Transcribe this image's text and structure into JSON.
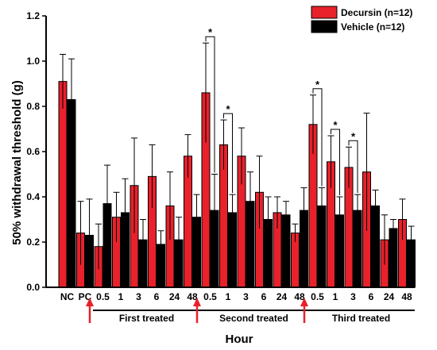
{
  "chart_data": {
    "type": "bar",
    "xlabel": "Hour",
    "ylabel": "50% withdrawal threshold (g)",
    "ylim": [
      0,
      1.2
    ],
    "yticks": [
      "0.0",
      "0.2",
      "0.4",
      "0.6",
      "0.8",
      "1.0",
      "1.2"
    ],
    "categories": [
      "NC",
      "PC",
      "0.5",
      "1",
      "3",
      "6",
      "24",
      "48",
      "0.5",
      "1",
      "3",
      "6",
      "24",
      "48",
      "0.5",
      "1",
      "3",
      "6",
      "24",
      "48"
    ],
    "series": [
      {
        "name": "Decursin (n=12)",
        "color": "#e8212b",
        "values": [
          0.91,
          0.24,
          0.18,
          0.31,
          0.45,
          0.49,
          0.36,
          0.58,
          0.86,
          0.63,
          0.58,
          0.42,
          0.33,
          0.24,
          0.72,
          0.555,
          0.53,
          0.51,
          0.21,
          0.3
        ],
        "errors": [
          0.12,
          0.14,
          0.1,
          0.11,
          0.21,
          0.14,
          0.15,
          0.095,
          0.22,
          0.11,
          0.125,
          0.16,
          0.07,
          0.04,
          0.13,
          0.115,
          0.09,
          0.26,
          0.11,
          0.09
        ]
      },
      {
        "name": "Vehicle (n=12)",
        "color": "#000000",
        "values": [
          0.83,
          0.23,
          0.37,
          0.33,
          0.21,
          0.19,
          0.21,
          0.31,
          0.34,
          0.33,
          0.38,
          0.3,
          0.32,
          0.34,
          0.36,
          0.32,
          0.34,
          0.36,
          0.26,
          0.21
        ],
        "errors": [
          0.18,
          0.16,
          0.17,
          0.15,
          0.09,
          0.06,
          0.1,
          0.1,
          0.16,
          0.08,
          0.13,
          0.1,
          0.06,
          0.1,
          0.08,
          0.08,
          0.07,
          0.07,
          0.04,
          0.06
        ]
      }
    ],
    "significance": [
      {
        "index": 8,
        "label": "*"
      },
      {
        "index": 9,
        "label": "*"
      },
      {
        "index": 14,
        "label": "*"
      },
      {
        "index": 15,
        "label": "*"
      },
      {
        "index": 16,
        "label": "*"
      }
    ],
    "phases": [
      {
        "label": "First treated",
        "start": 2,
        "end": 7
      },
      {
        "label": "Second treated",
        "start": 8,
        "end": 13
      },
      {
        "label": "Third treated",
        "start": 14,
        "end": 19
      }
    ],
    "arrows_at_index": [
      2,
      8,
      14
    ],
    "arrow_color": "#e8212b",
    "legend_position": "top-right",
    "grid": false
  }
}
